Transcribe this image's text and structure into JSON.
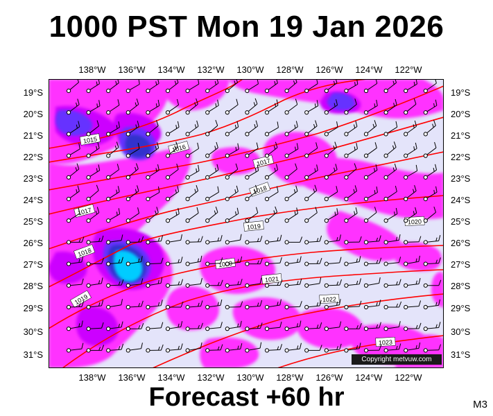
{
  "title": "1000 PST Mon 19 Jan 2026",
  "subtitle": "Forecast +60 hr",
  "model_code": "M3",
  "copyright": "Copyright metvuw.com",
  "lon_labels": [
    "138°W",
    "136°W",
    "134°W",
    "132°W",
    "130°W",
    "128°W",
    "126°W",
    "124°W",
    "122°W"
  ],
  "lat_labels": [
    "19°S",
    "20°S",
    "21°S",
    "22°S",
    "23°S",
    "24°S",
    "25°S",
    "26°S",
    "27°S",
    "28°S",
    "29°S",
    "30°S",
    "31°S"
  ],
  "isobar_labels": [
    "1015",
    "1016",
    "1017",
    "1017",
    "1018",
    "1018",
    "1019",
    "1019",
    "1020",
    "1020",
    "1021",
    "1022",
    "1023"
  ],
  "colors": {
    "background": "#ffffff",
    "sea": "#e4e4fa",
    "rain_light": "#ff33ff",
    "rain_moderate": "#cc00ff",
    "rain_heavy": "#6633ff",
    "rain_heavier": "#3333cc",
    "rain_intense": "#00ccff",
    "isobar": "#ff0000",
    "wind_barb": "#000000"
  },
  "icons": {
    "wind_barb": "wind-barb-icon"
  }
}
